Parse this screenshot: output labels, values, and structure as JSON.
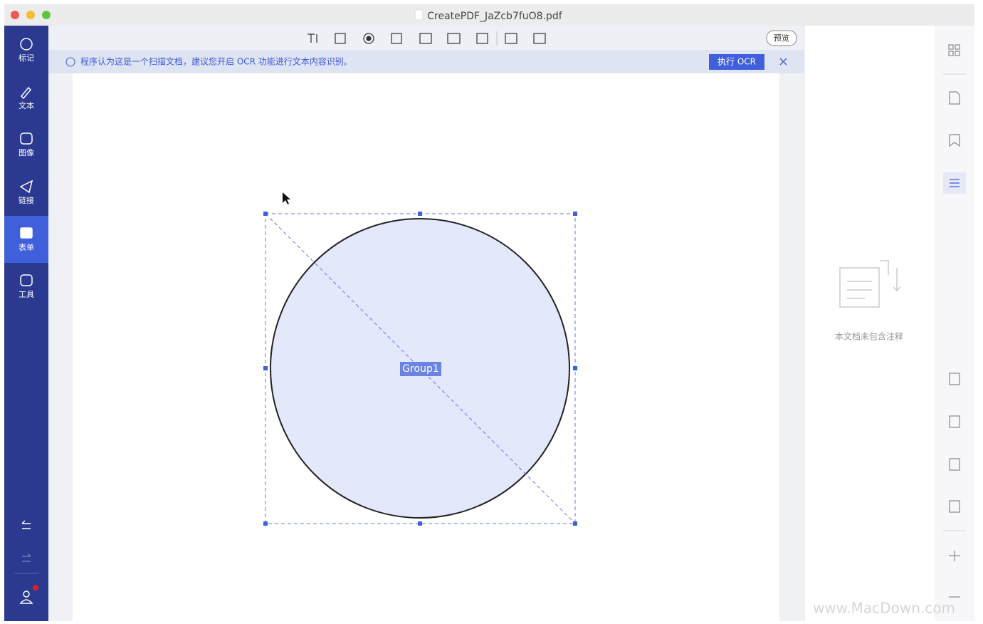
{
  "window": {
    "title": "CreatePDF_JaZcb7fuO8.pdf"
  },
  "sidebar": {
    "items": [
      "标记",
      "文本",
      "图像",
      "链接",
      "表单",
      "工具"
    ]
  },
  "toolbar": {
    "preview": "预览"
  },
  "notice": {
    "message": "程序认为这是一个扫描文档，建议您开启 OCR 功能进行文本内容识别。",
    "action": "执行 OCR"
  },
  "canvas": {
    "group_label": "Group1"
  },
  "annotations_panel": {
    "empty_message": "本文档未包含注释"
  },
  "watermark": "www.MacDown.com"
}
